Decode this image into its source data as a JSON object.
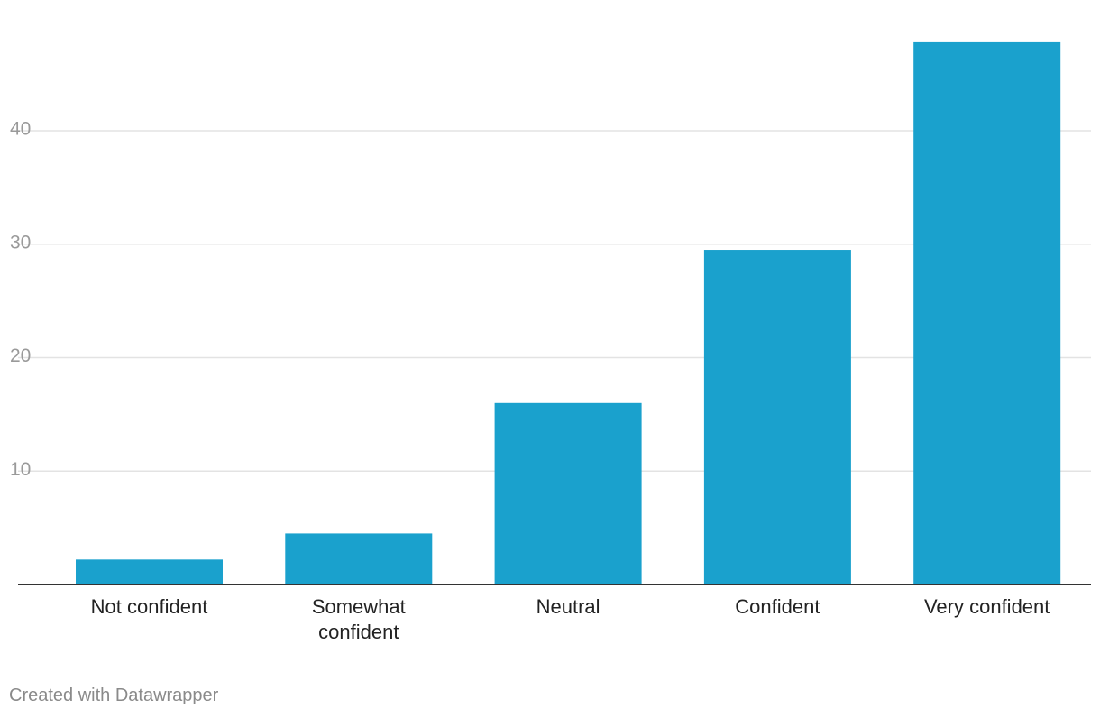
{
  "chart_data": {
    "type": "bar",
    "categories": [
      [
        "Not confident"
      ],
      [
        "Somewhat",
        "confident"
      ],
      [
        "Neutral"
      ],
      [
        "Confident"
      ],
      [
        "Very confident"
      ]
    ],
    "values": [
      2.2,
      4.5,
      16,
      29.5,
      47.8
    ],
    "yticks": [
      10,
      20,
      30,
      40
    ],
    "ylim": [
      0,
      48
    ],
    "grid": true,
    "bar_color": "#1aa1cd",
    "title": "",
    "xlabel": "",
    "ylabel": ""
  },
  "footer": {
    "credit": "Created with Datawrapper"
  }
}
